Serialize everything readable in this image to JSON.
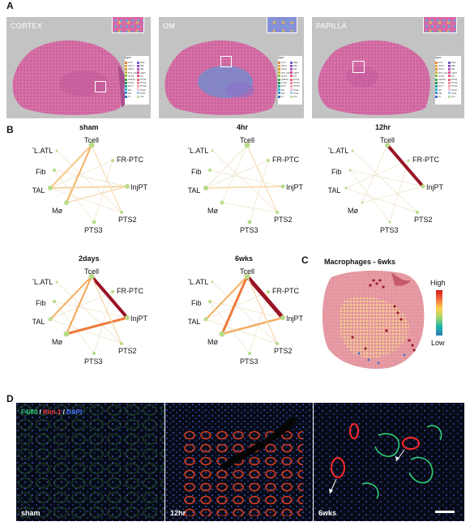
{
  "figure": {
    "panel_labels": {
      "a": "A",
      "b": "B",
      "c": "C",
      "d": "D"
    },
    "tissue_panels": [
      {
        "label": "CORTEX"
      },
      {
        "label": "OM"
      },
      {
        "label": "PAPILLA"
      }
    ],
    "legend": {
      "title": "type",
      "items": [
        "CnT",
        "cDL1",
        "cDL2",
        "DTL.ATL",
        "cPTS",
        "cMTAL",
        "CTAL",
        "DCT",
        "EC",
        "Fib",
        "IC",
        "Mac",
        "MD",
        "Mø",
        "InjPT",
        "PC",
        "PTS1",
        "PTS2",
        "PTS3",
        "Podo",
        "Tcell",
        "Uro"
      ],
      "colors": [
        "#e8833a",
        "#f2a541",
        "#d89b2b",
        "#c9b03a",
        "#7fbf3f",
        "#3fae49",
        "#2e8b57",
        "#1aa39a",
        "#2ab0c9",
        "#2f8fd0",
        "#3d6fc7",
        "#6b5fc7",
        "#8e4fc2",
        "#b04fb5",
        "#d04f9a",
        "#e0508a",
        "#e8607a",
        "#f08a9a",
        "#f3a0b8",
        "#f7b6d0",
        "#9ad0e6",
        "#b9d9a7"
      ]
    },
    "network_nodes": {
      "tcell": "Tcell",
      "frptc": "FR-PTC",
      "injpt": "InjPT",
      "pts2": "PTS2",
      "pts3": "PTS3",
      "mo": "Mø",
      "mtal": "MTAL",
      "fib": "Fib",
      "dtl": "DTL.ATL"
    },
    "networks": [
      {
        "title": "sham"
      },
      {
        "title": "4hr"
      },
      {
        "title": "12hr"
      },
      {
        "title": "2days"
      },
      {
        "title": "6wks"
      }
    ],
    "panel_c": {
      "title": "Macrophages - 6wks",
      "scale_high": "High",
      "scale_low": "Low"
    },
    "panel_d": {
      "stain": {
        "f480": "F4/80",
        "sep1": " / ",
        "kim1": "Kim-1",
        "sep2": " / ",
        "dapi": "DAPI"
      },
      "stain_colors": {
        "f480": "#2fd07a",
        "kim1": "#ff3b3b",
        "dapi": "#4d7bff"
      },
      "images": [
        {
          "label": "sham"
        },
        {
          "label": "12hr"
        },
        {
          "label": "6wks"
        }
      ]
    }
  }
}
